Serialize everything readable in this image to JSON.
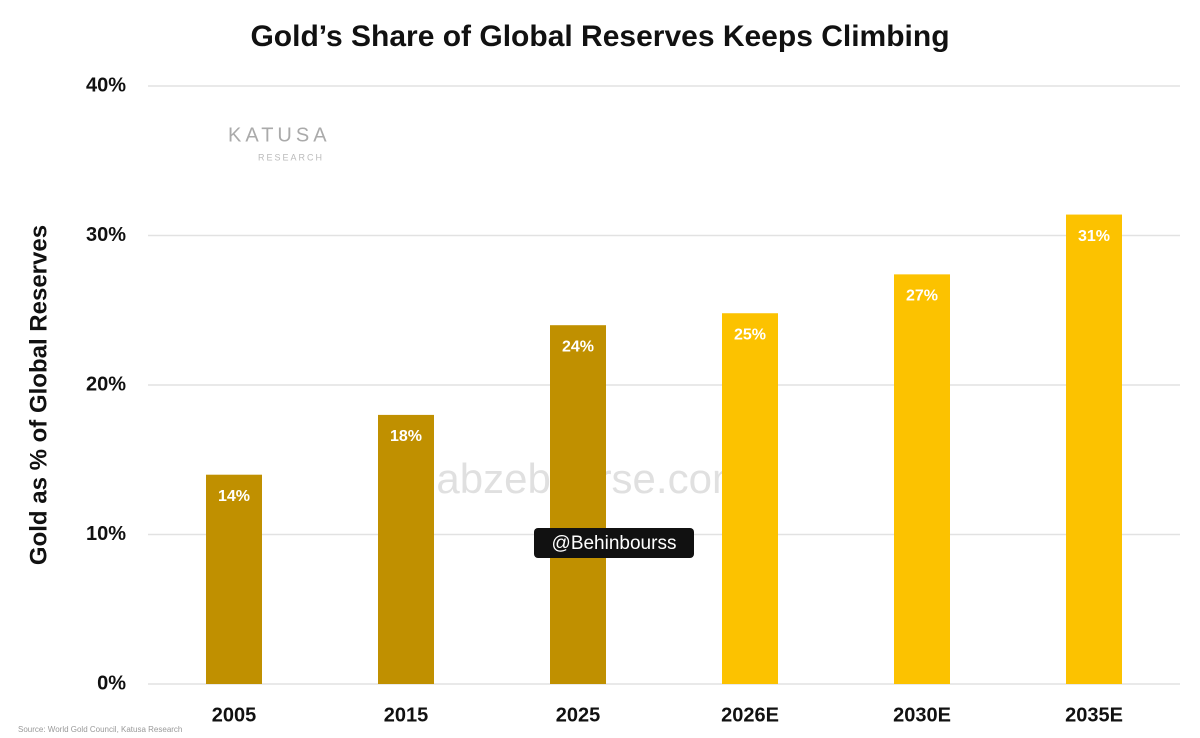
{
  "chart_data": {
    "type": "bar",
    "title": "Gold’s Share of Global Reserves Keeps Climbing",
    "y_label": "Gold as % of Global Reserves",
    "categories": [
      "2005",
      "2015",
      "2025",
      "2026E",
      "2030E",
      "2035E"
    ],
    "values": [
      14,
      18,
      24,
      24.8,
      27.4,
      31.4
    ],
    "value_labels": [
      "14%",
      "18%",
      "24%",
      "25%",
      "27%",
      "31%"
    ],
    "colors": [
      "#c09000",
      "#c09000",
      "#c09000",
      "#fcc200",
      "#fcc200",
      "#fcc200"
    ],
    "ylim": [
      0,
      40
    ],
    "yticks": [
      {
        "value": 0,
        "label": "0%"
      },
      {
        "value": 10,
        "label": "10%"
      },
      {
        "value": 20,
        "label": "20%"
      },
      {
        "value": 30,
        "label": "30%"
      },
      {
        "value": 40,
        "label": "40%"
      }
    ],
    "grid": true,
    "source": "Source: World Gold Council, Katusa Research",
    "watermarks": [
      "KATUSA",
      "RESEARCH",
      "nabzebourse.com",
      "@Behinbourss"
    ]
  }
}
